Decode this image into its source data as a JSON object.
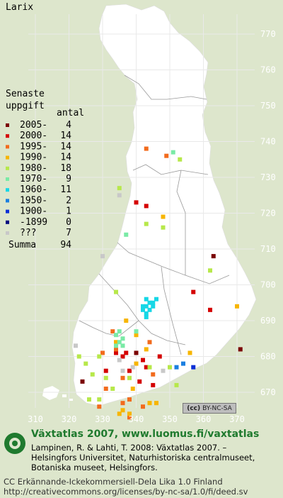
{
  "species": "Larix",
  "legend": {
    "title_line1": "Senaste",
    "title_line2": "uppgift",
    "count_header": "antal",
    "rows": [
      {
        "label": "2005-",
        "count": "4",
        "color": "#7a0000"
      },
      {
        "label": "2000-",
        "count": "14",
        "color": "#d40000"
      },
      {
        "label": "1995-",
        "count": "14",
        "color": "#f26b1d"
      },
      {
        "label": "1990-",
        "count": "14",
        "color": "#f7b500"
      },
      {
        "label": "1980-",
        "count": "18",
        "color": "#b7e84a"
      },
      {
        "label": "1970-",
        "count": "9",
        "color": "#7aeaa6"
      },
      {
        "label": "1960-",
        "count": "11",
        "color": "#16d7e6"
      },
      {
        "label": "1950-",
        "count": "2",
        "color": "#1b7fe0"
      },
      {
        "label": "1900-",
        "count": "1",
        "color": "#0a2fd6"
      },
      {
        "label": "-1899",
        "count": "0",
        "color": "#000b80"
      },
      {
        "label": "???",
        "count": "7",
        "color": "#c8c8c8"
      }
    ],
    "total_label": "Summa",
    "total_count": "94"
  },
  "axes": {
    "y_ticks": [
      "770",
      "760",
      "750",
      "740",
      "730",
      "720",
      "710",
      "700",
      "690",
      "680",
      "670"
    ],
    "x_ticks": [
      "310",
      "320",
      "330",
      "340",
      "350",
      "360",
      "370"
    ]
  },
  "chart_data": {
    "type": "scatter",
    "title": "Larix",
    "x_axis_values": [
      310,
      320,
      330,
      340,
      350,
      360,
      370
    ],
    "y_axis_values": [
      770,
      760,
      750,
      740,
      730,
      720,
      710,
      700,
      690,
      680,
      670
    ],
    "series": [
      {
        "name": "2005-",
        "color": "#7a0000",
        "points": [
          [
            363,
            708
          ],
          [
            324,
            673
          ],
          [
            371,
            682
          ],
          [
            340,
            681
          ]
        ]
      },
      {
        "name": "2000-",
        "color": "#d40000",
        "points": [
          [
            340,
            723
          ],
          [
            343,
            722
          ],
          [
            357,
            698
          ],
          [
            362,
            693
          ],
          [
            334,
            681
          ],
          [
            336,
            680
          ],
          [
            338,
            676
          ],
          [
            342,
            679
          ],
          [
            347,
            680
          ],
          [
            331,
            676
          ],
          [
            345,
            672
          ],
          [
            337,
            681
          ],
          [
            341,
            673
          ],
          [
            343,
            677
          ]
        ]
      },
      {
        "name": "1995-",
        "color": "#f26b1d",
        "points": [
          [
            343,
            738
          ],
          [
            349,
            736
          ],
          [
            329,
            666
          ],
          [
            336,
            667
          ],
          [
            338,
            663
          ],
          [
            333,
            687
          ],
          [
            330,
            681
          ],
          [
            336,
            674
          ],
          [
            334,
            682
          ],
          [
            342,
            666
          ],
          [
            344,
            684
          ],
          [
            331,
            671
          ],
          [
            345,
            675
          ],
          [
            338,
            668
          ]
        ]
      },
      {
        "name": "1990-",
        "color": "#f7b500",
        "points": [
          [
            348,
            719
          ],
          [
            370,
            694
          ],
          [
            356,
            681
          ],
          [
            337,
            690
          ],
          [
            340,
            686
          ],
          [
            334,
            684
          ],
          [
            339,
            671
          ],
          [
            338,
            664
          ],
          [
            335,
            664
          ],
          [
            344,
            667
          ],
          [
            336,
            665
          ],
          [
            346,
            667
          ],
          [
            340,
            678
          ],
          [
            343,
            682
          ]
        ]
      },
      {
        "name": "1980-",
        "color": "#b7e84a",
        "points": [
          [
            335,
            727
          ],
          [
            353,
            735
          ],
          [
            343,
            717
          ],
          [
            348,
            716
          ],
          [
            362,
            704
          ],
          [
            334,
            698
          ],
          [
            329,
            680
          ],
          [
            327,
            675
          ],
          [
            323,
            680
          ],
          [
            325,
            678
          ],
          [
            331,
            674
          ],
          [
            338,
            674
          ],
          [
            344,
            677
          ],
          [
            350,
            677
          ],
          [
            352,
            672
          ],
          [
            326,
            668
          ],
          [
            329,
            668
          ],
          [
            333,
            671
          ]
        ]
      },
      {
        "name": "1970-",
        "color": "#7aeaa6",
        "points": [
          [
            351,
            737
          ],
          [
            337,
            714
          ],
          [
            335,
            687
          ],
          [
            336,
            685
          ],
          [
            335,
            684
          ],
          [
            334,
            683
          ],
          [
            336,
            683
          ],
          [
            334,
            686
          ],
          [
            340,
            687
          ]
        ]
      },
      {
        "name": "1960-",
        "color": "#16d7e6",
        "points": [
          [
            342,
            694
          ],
          [
            343,
            694
          ],
          [
            344,
            695
          ],
          [
            345,
            694
          ],
          [
            342,
            693
          ],
          [
            343,
            692
          ],
          [
            344,
            693
          ],
          [
            343,
            691
          ],
          [
            345,
            695
          ],
          [
            346,
            696
          ],
          [
            343,
            696
          ]
        ]
      },
      {
        "name": "1950-",
        "color": "#1b7fe0",
        "points": [
          [
            354,
            678
          ],
          [
            352,
            677
          ]
        ]
      },
      {
        "name": "1900-",
        "color": "#0a2fd6",
        "points": [
          [
            357,
            677
          ]
        ]
      },
      {
        "name": "-1899",
        "color": "#000b80",
        "points": []
      },
      {
        "name": "???",
        "color": "#c8c8c8",
        "points": [
          [
            335,
            725
          ],
          [
            330,
            708
          ],
          [
            322,
            683
          ],
          [
            336,
            676
          ],
          [
            339,
            677
          ],
          [
            348,
            676
          ],
          [
            335,
            679
          ]
        ]
      }
    ]
  },
  "cc_badge": "BY-NC-SA",
  "footer": {
    "title": "Växtatlas 2007, www.luomus.fi/vaxtatlas",
    "citation_line1": "Lampinen, R. & Lahti, T. 2008: Växtatlas 2007. –",
    "citation_line2": "Helsingfors Universitet, Naturhistoriska centralmuseet,",
    "citation_line3": "Botaniska museet, Helsingfors.",
    "license_line1": "CC Erkännande-Icke­kommersiell-Dela Lika 1.0 Finland",
    "license_line2": "http://creativecommons.org/licenses/by-nc-sa/1.0/fi/deed.sv"
  }
}
